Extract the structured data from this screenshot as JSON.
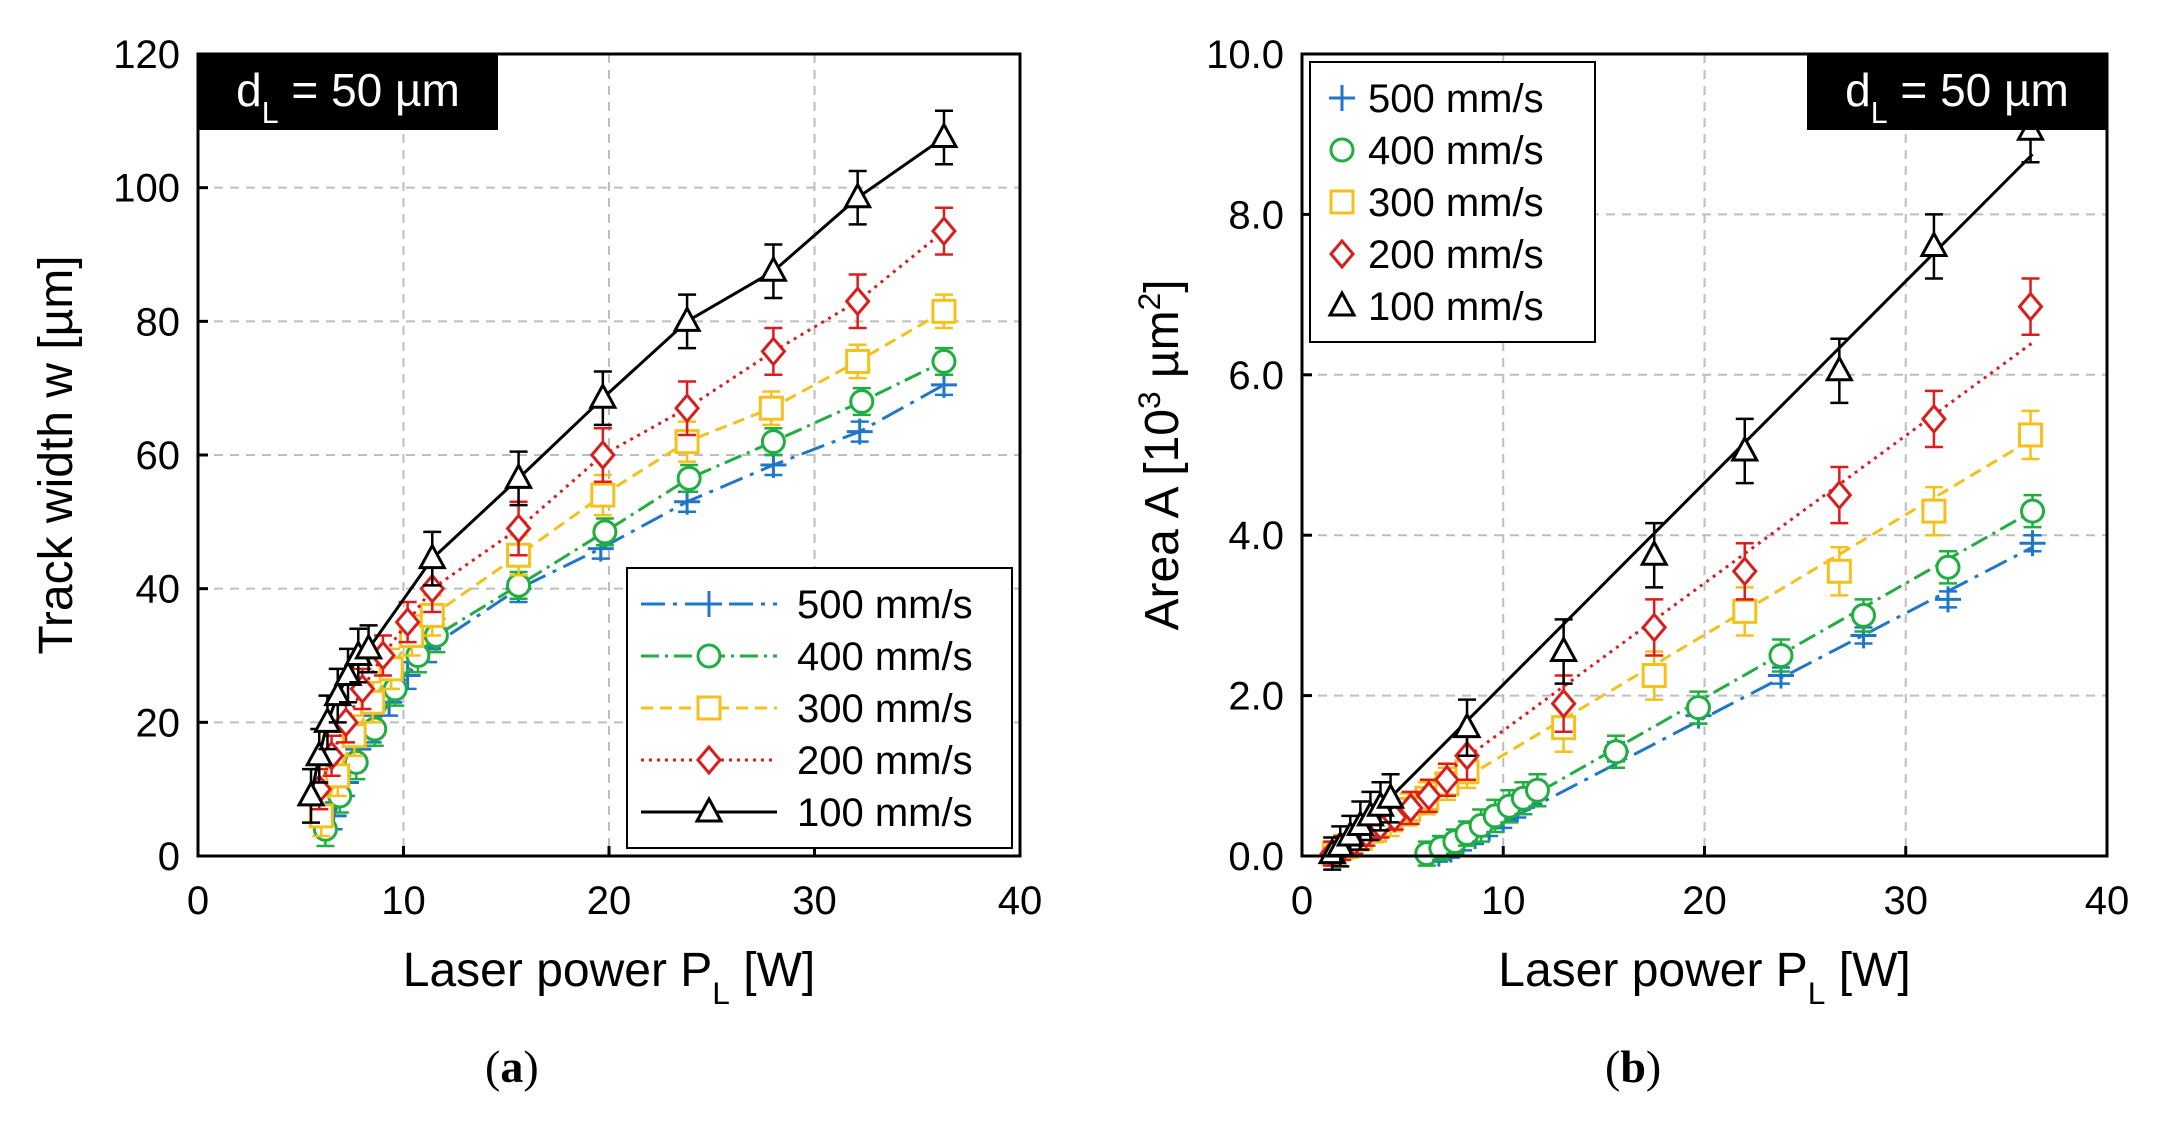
{
  "colors": {
    "s500": "#1f77c8",
    "s400": "#1fae3f",
    "s300": "#f5c01a",
    "s200": "#dd1c1c",
    "s100": "#000000",
    "grid": "#bdbdbd",
    "badge_bg": "#000000",
    "badge_fg": "#ffffff"
  },
  "captions": [
    {
      "open": "(",
      "label": "a",
      "close": ")"
    },
    {
      "open": "(",
      "label": "b",
      "close": ")"
    }
  ],
  "chart_data": [
    {
      "id": "a",
      "type": "line",
      "xlabel": {
        "main": "Laser power P",
        "sub": "L",
        "tail": " [W]"
      },
      "ylabel": {
        "main": "Track width w [µm]"
      },
      "xlim": [
        0,
        40
      ],
      "ylim": [
        0,
        120
      ],
      "xticks": [
        0,
        10,
        20,
        30,
        40
      ],
      "yticks": [
        0,
        20,
        40,
        60,
        80,
        100,
        120
      ],
      "ytick_labels": [
        "0",
        "20",
        "40",
        "60",
        "80",
        "100",
        "120"
      ],
      "grid": true,
      "badge": {
        "main": "d",
        "sub": "L",
        "tail": " = 50 µm",
        "placement": "top-left"
      },
      "legend": {
        "placement": "bottom-right",
        "line_samples": true
      },
      "series": [
        {
          "key": "s500",
          "name": "500 mm/s",
          "marker": "plus",
          "dash": "24,8,4,8",
          "x": [
            6.6,
            7.2,
            7.8,
            8.5,
            9.3,
            10.2,
            11.2,
            15.6,
            19.6,
            23.8,
            28.0,
            32.2,
            36.3
          ],
          "y": [
            6,
            11,
            16,
            19,
            23,
            27,
            31,
            40,
            46,
            53,
            58.5,
            63.5,
            70.5
          ],
          "err": [
            2,
            2,
            2,
            2,
            2,
            2,
            2,
            2,
            1.5,
            1.5,
            1.5,
            1.5,
            1.5
          ]
        },
        {
          "key": "s400",
          "name": "400 mm/s",
          "marker": "circle",
          "dash": "18,6,3,6",
          "x": [
            6.2,
            6.9,
            7.7,
            8.6,
            9.6,
            10.7,
            11.6,
            15.6,
            19.8,
            23.9,
            28.0,
            32.3,
            36.3
          ],
          "y": [
            4,
            9,
            14,
            19,
            25,
            30,
            33,
            40.5,
            48.5,
            56.5,
            62,
            68,
            74
          ],
          "err": [
            2.5,
            2.5,
            2.5,
            2.5,
            2.5,
            2.5,
            2.5,
            2,
            2,
            2,
            2,
            2,
            2
          ]
        },
        {
          "key": "s300",
          "name": "300 mm/s",
          "marker": "square",
          "dash": "12,7",
          "x": [
            6.0,
            6.8,
            7.6,
            8.5,
            9.4,
            10.4,
            11.4,
            15.6,
            19.7,
            23.8,
            27.9,
            32.1,
            36.3
          ],
          "y": [
            6,
            12,
            18,
            23,
            28,
            33,
            36,
            45,
            54,
            62,
            67,
            74,
            81.5
          ],
          "err": [
            3,
            3,
            3,
            3,
            3,
            3,
            3,
            3,
            3,
            3,
            2.5,
            2.5,
            2.5
          ]
        },
        {
          "key": "s200",
          "name": "200 mm/s",
          "marker": "diamond",
          "dash": "3,5",
          "x": [
            5.9,
            6.5,
            7.2,
            8.0,
            9.0,
            10.2,
            11.4,
            15.6,
            19.7,
            23.8,
            28.0,
            32.1,
            36.3
          ],
          "y": [
            10,
            15,
            20,
            25,
            30,
            35,
            40,
            49,
            60,
            67,
            75.5,
            83,
            93.5
          ],
          "err": [
            3,
            3,
            3,
            3,
            3,
            3,
            3.5,
            4,
            4,
            4,
            3.5,
            4,
            3.5
          ]
        },
        {
          "key": "s100",
          "name": "100 mm/s",
          "marker": "triangle",
          "dash": "",
          "x": [
            5.5,
            5.9,
            6.3,
            6.8,
            7.3,
            7.8,
            8.3,
            11.4,
            15.6,
            19.7,
            23.8,
            28.0,
            32.1,
            36.3
          ],
          "y": [
            9,
            15,
            20,
            24,
            27,
            30,
            31,
            44.5,
            56.5,
            68.5,
            80,
            87.5,
            98.5,
            107.5
          ],
          "err": [
            4,
            4,
            4,
            4,
            4,
            4,
            3.5,
            4,
            4,
            4,
            4,
            4,
            4,
            4
          ]
        }
      ]
    },
    {
      "id": "b",
      "type": "line",
      "xlabel": {
        "main": "Laser power P",
        "sub": "L",
        "tail": " [W]"
      },
      "ylabel": {
        "main": "Area A [10",
        "sup": "3",
        "mid": " µm",
        "sup2": "2",
        "tail": "]"
      },
      "xlim": [
        0,
        40
      ],
      "ylim": [
        0,
        10
      ],
      "xticks": [
        0,
        10,
        20,
        30,
        40
      ],
      "yticks": [
        0,
        2,
        4,
        6,
        8,
        10
      ],
      "ytick_labels": [
        "0.0",
        "2.0",
        "4.0",
        "6.0",
        "8.0",
        "10.0"
      ],
      "grid": true,
      "badge": {
        "main": "d",
        "sub": "L",
        "tail": " = 50 µm",
        "placement": "top-right"
      },
      "legend": {
        "placement": "top-left",
        "line_samples": false
      },
      "series": [
        {
          "key": "s500",
          "name": "500 mm/s",
          "marker": "plus",
          "dash": "24,8,4,8",
          "fit": [
            [
              6.8,
              0.0
            ],
            [
              36.3,
              3.85
            ]
          ],
          "x": [
            6.8,
            7.4,
            8.0,
            8.6,
            9.3,
            10.0,
            10.7,
            11.5,
            15.6,
            19.7,
            23.8,
            27.9,
            32.1,
            36.3
          ],
          "y": [
            0.03,
            0.08,
            0.17,
            0.25,
            0.35,
            0.45,
            0.58,
            0.75,
            1.3,
            1.75,
            2.25,
            2.75,
            3.2,
            3.9
          ],
          "err": [
            0.1,
            0.1,
            0.1,
            0.1,
            0.1,
            0.1,
            0.1,
            0.1,
            0.12,
            0.1,
            0.1,
            0.1,
            0.1,
            0.1
          ]
        },
        {
          "key": "s400",
          "name": "400 mm/s",
          "marker": "circle",
          "dash": "18,6,3,6",
          "fit": [
            [
              6.2,
              0.0
            ],
            [
              36.3,
              4.3
            ]
          ],
          "x": [
            6.2,
            6.9,
            7.6,
            8.2,
            8.9,
            9.6,
            10.3,
            11.0,
            11.7,
            15.6,
            19.7,
            23.8,
            27.9,
            32.1,
            36.3
          ],
          "y": [
            0.03,
            0.1,
            0.18,
            0.28,
            0.38,
            0.5,
            0.62,
            0.72,
            0.82,
            1.3,
            1.85,
            2.5,
            3.0,
            3.6,
            4.3
          ],
          "err": [
            0.15,
            0.15,
            0.15,
            0.15,
            0.2,
            0.2,
            0.2,
            0.2,
            0.2,
            0.2,
            0.2,
            0.2,
            0.2,
            0.2,
            0.2
          ]
        },
        {
          "key": "s300",
          "name": "300 mm/s",
          "marker": "square",
          "dash": "12,7",
          "fit": [
            [
              1.6,
              0.0
            ],
            [
              36.3,
              5.2
            ]
          ],
          "x": [
            1.6,
            2.2,
            2.9,
            3.6,
            4.4,
            5.3,
            6.2,
            7.2,
            8.2,
            13.0,
            17.5,
            22.0,
            26.7,
            31.4,
            36.2
          ],
          "y": [
            0.03,
            0.12,
            0.22,
            0.32,
            0.45,
            0.58,
            0.72,
            0.9,
            1.05,
            1.6,
            2.25,
            3.05,
            3.55,
            4.3,
            5.25
          ],
          "err": [
            0.15,
            0.15,
            0.15,
            0.15,
            0.2,
            0.2,
            0.2,
            0.2,
            0.2,
            0.3,
            0.3,
            0.3,
            0.3,
            0.3,
            0.3
          ]
        },
        {
          "key": "s200",
          "name": "200 mm/s",
          "marker": "diamond",
          "dash": "3,5",
          "fit": [
            [
              1.5,
              0.0
            ],
            [
              36.3,
              6.4
            ]
          ],
          "x": [
            1.5,
            2.0,
            2.6,
            3.2,
            3.9,
            4.6,
            5.4,
            6.3,
            7.2,
            8.2,
            13.0,
            17.5,
            22.0,
            26.7,
            31.4,
            36.2
          ],
          "y": [
            0.03,
            0.1,
            0.18,
            0.28,
            0.38,
            0.48,
            0.6,
            0.75,
            0.95,
            1.25,
            1.9,
            2.85,
            3.55,
            4.5,
            5.45,
            6.85
          ],
          "err": [
            0.15,
            0.15,
            0.15,
            0.15,
            0.15,
            0.15,
            0.2,
            0.2,
            0.2,
            0.3,
            0.35,
            0.35,
            0.35,
            0.35,
            0.35,
            0.35
          ]
        },
        {
          "key": "s100",
          "name": "100 mm/s",
          "marker": "triangle",
          "dash": "",
          "fit": [
            [
              1.5,
              0.0
            ],
            [
              36.3,
              8.75
            ]
          ],
          "x": [
            1.5,
            1.9,
            2.4,
            2.9,
            3.4,
            3.9,
            4.4,
            8.2,
            13.0,
            17.5,
            22.0,
            26.7,
            31.4,
            36.2
          ],
          "y": [
            0.03,
            0.12,
            0.25,
            0.38,
            0.5,
            0.62,
            0.72,
            1.6,
            2.55,
            3.75,
            5.05,
            6.05,
            7.6,
            9.05
          ],
          "err": [
            0.2,
            0.25,
            0.25,
            0.3,
            0.3,
            0.3,
            0.3,
            0.35,
            0.4,
            0.4,
            0.4,
            0.4,
            0.4,
            0.4
          ]
        }
      ]
    }
  ]
}
